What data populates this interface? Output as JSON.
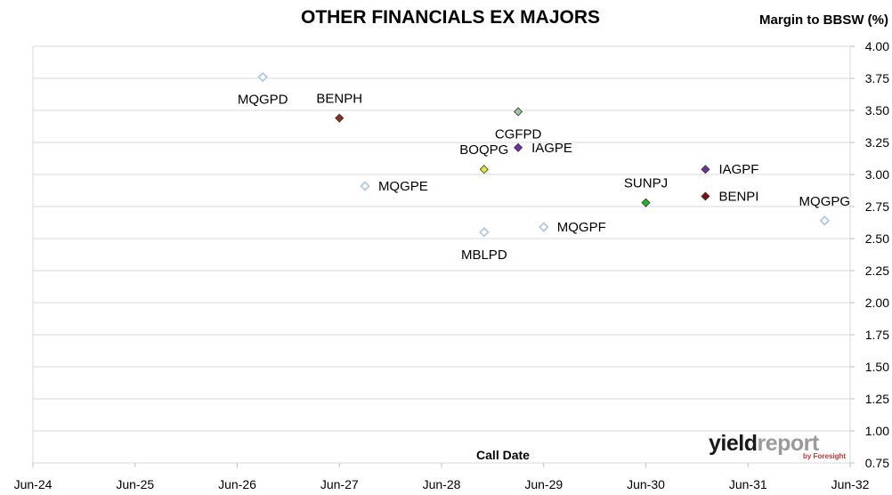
{
  "chart_data": {
    "type": "scatter",
    "title": "OTHER FINANCIALS EX MAJORS",
    "xlabel": "Call Date",
    "ylabel": "Margin to BBSW (%)",
    "x_ticks": [
      "Jun-24",
      "Jun-25",
      "Jun-26",
      "Jun-27",
      "Jun-28",
      "Jun-29",
      "Jun-30",
      "Jun-31",
      "Jun-32"
    ],
    "y_ticks": [
      "0.75",
      "1.00",
      "1.25",
      "1.50",
      "1.75",
      "2.00",
      "2.25",
      "2.50",
      "2.75",
      "3.00",
      "3.25",
      "3.50",
      "3.75",
      "4.00"
    ],
    "ylim": [
      0.75,
      4.0
    ],
    "xlim": [
      "2024-06",
      "2032-06"
    ],
    "grid": "horizontal",
    "points": [
      {
        "label": "MQGPD",
        "x": "2026-09",
        "y": 3.76,
        "color": "#b4c7e7",
        "filled": false,
        "label_pos": "below"
      },
      {
        "label": "BENPH",
        "x": "2027-06",
        "y": 3.44,
        "color": "#8b2e1a",
        "filled": true,
        "label_pos": "above"
      },
      {
        "label": "MQGPE",
        "x": "2027-09",
        "y": 2.91,
        "color": "#b4c7e7",
        "filled": false,
        "label_pos": "right"
      },
      {
        "label": "CGFPD",
        "x": "2029-03",
        "y": 3.49,
        "color": "#9fc59a",
        "filled": true,
        "label_pos": "below"
      },
      {
        "label": "IAGPE",
        "x": "2029-03",
        "y": 3.21,
        "color": "#7030a0",
        "filled": true,
        "label_pos": "right"
      },
      {
        "label": "BOQPG",
        "x": "2028-11",
        "y": 3.04,
        "color": "#e6e633",
        "filled": true,
        "label_pos": "above"
      },
      {
        "label": "MBLPD",
        "x": "2028-11",
        "y": 2.55,
        "color": "#b4c7e7",
        "filled": false,
        "label_pos": "below"
      },
      {
        "label": "MQGPF",
        "x": "2029-06",
        "y": 2.59,
        "color": "#b4c7e7",
        "filled": false,
        "label_pos": "right"
      },
      {
        "label": "SUNPJ",
        "x": "2030-06",
        "y": 2.78,
        "color": "#1fb81f",
        "filled": true,
        "label_pos": "above"
      },
      {
        "label": "IAGPF",
        "x": "2031-01",
        "y": 3.04,
        "color": "#7030a0",
        "filled": true,
        "label_pos": "right"
      },
      {
        "label": "BENPI",
        "x": "2031-01",
        "y": 2.83,
        "color": "#7a0f0f",
        "filled": true,
        "label_pos": "right"
      },
      {
        "label": "MQGPG",
        "x": "2032-03",
        "y": 2.64,
        "color": "#b4c7e7",
        "filled": false,
        "label_pos": "above"
      }
    ]
  },
  "logo": {
    "yield": "yield",
    "report": "report",
    "sub": "by Foresight"
  }
}
